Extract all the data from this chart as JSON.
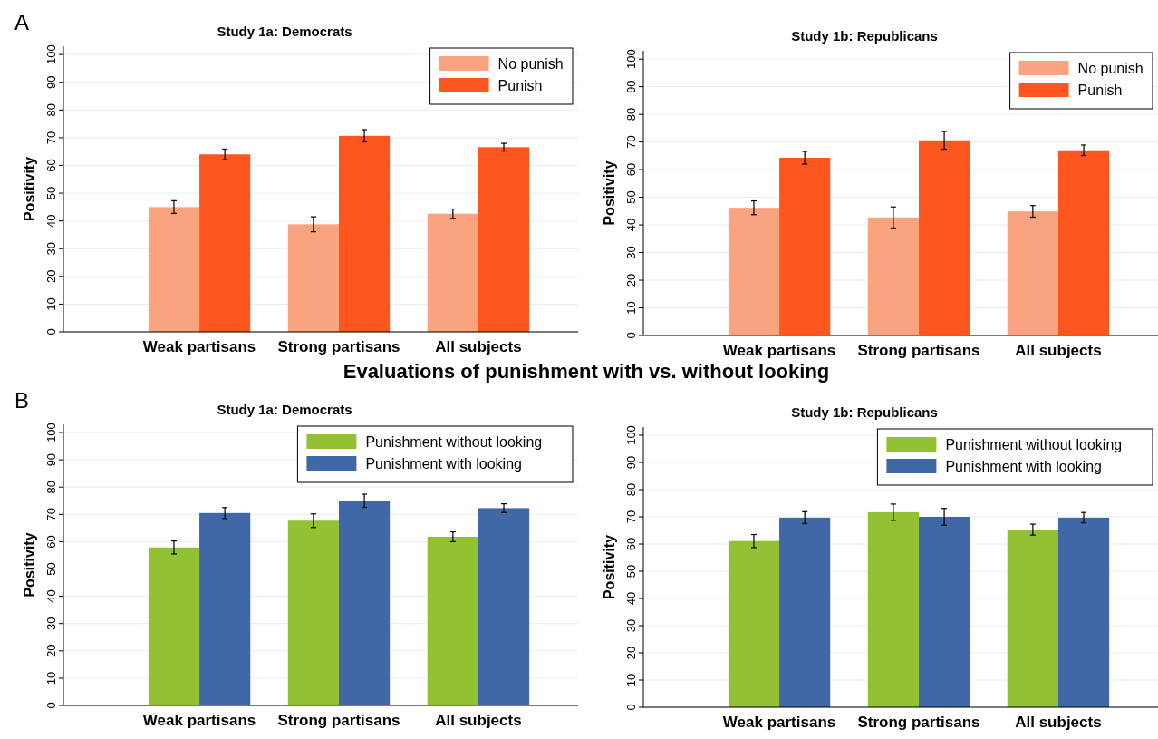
{
  "chart_data": [
    {
      "type": "bar",
      "title": "Study 1a: Democrats",
      "ylabel": "Positivity",
      "annotations": [
        "A"
      ],
      "categories": [
        "Weak partisans",
        "Strong partisans",
        "All subjects"
      ],
      "ylim": [
        0,
        103
      ],
      "yticks": [
        0,
        10,
        20,
        30,
        40,
        50,
        60,
        70,
        80,
        90,
        100
      ],
      "grid": "y",
      "legend": "top right",
      "series": [
        {
          "name": "No punish",
          "color": "#f9a47e",
          "values": [
            45,
            38.8,
            42.6
          ],
          "errors": [
            2.3,
            2.7,
            1.7
          ]
        },
        {
          "name": "Punish",
          "color": "#fe561f",
          "values": [
            64,
            70.7,
            66.6
          ],
          "errors": [
            1.9,
            2.2,
            1.4
          ]
        }
      ]
    },
    {
      "type": "bar",
      "title": "Study 1b: Republicans",
      "ylabel": "Positivity",
      "categories": [
        "Weak partisans",
        "Strong partisans",
        "All subjects"
      ],
      "ylim": [
        0,
        103
      ],
      "yticks": [
        0,
        10,
        20,
        30,
        40,
        50,
        60,
        70,
        80,
        90,
        100
      ],
      "grid": "y",
      "legend": "top right",
      "series": [
        {
          "name": "No punish",
          "color": "#f9a47e",
          "values": [
            46.2,
            42.7,
            44.9
          ],
          "errors": [
            2.5,
            3.8,
            2.1
          ]
        },
        {
          "name": "Punish",
          "color": "#fe561f",
          "values": [
            64.3,
            70.6,
            67
          ],
          "errors": [
            2.3,
            3.2,
            1.9
          ]
        }
      ]
    },
    {
      "type": "bar",
      "title": "Study 1a: Democrats",
      "ylabel": "Positivity",
      "annotations": [
        "B",
        "Evaluations of punishment with vs. without looking"
      ],
      "categories": [
        "Weak partisans",
        "Strong partisans",
        "All subjects"
      ],
      "ylim": [
        0,
        103
      ],
      "yticks": [
        0,
        10,
        20,
        30,
        40,
        50,
        60,
        70,
        80,
        90,
        100
      ],
      "grid": "y",
      "legend": "top right",
      "series": [
        {
          "name": "Punishment without looking",
          "color": "#92c134",
          "values": [
            57.9,
            67.7,
            61.8
          ],
          "errors": [
            2.4,
            2.5,
            1.8
          ]
        },
        {
          "name": "Punishment with looking",
          "color": "#4068a7",
          "values": [
            70.5,
            75,
            72.3
          ],
          "errors": [
            2,
            2.4,
            1.6
          ]
        }
      ]
    },
    {
      "type": "bar",
      "title": "Study 1b: Republicans",
      "ylabel": "Positivity",
      "categories": [
        "Weak partisans",
        "Strong partisans",
        "All subjects"
      ],
      "ylim": [
        0,
        103
      ],
      "yticks": [
        0,
        10,
        20,
        30,
        40,
        50,
        60,
        70,
        80,
        90,
        100
      ],
      "grid": "y",
      "legend": "top right",
      "series": [
        {
          "name": "Punishment without looking",
          "color": "#92c134",
          "values": [
            61.1,
            71.7,
            65.3
          ],
          "errors": [
            2.4,
            3,
            2
          ]
        },
        {
          "name": "Punishment with looking",
          "color": "#4068a7",
          "values": [
            69.7,
            70,
            69.7
          ],
          "errors": [
            2.2,
            3.1,
            1.9
          ]
        }
      ]
    }
  ]
}
